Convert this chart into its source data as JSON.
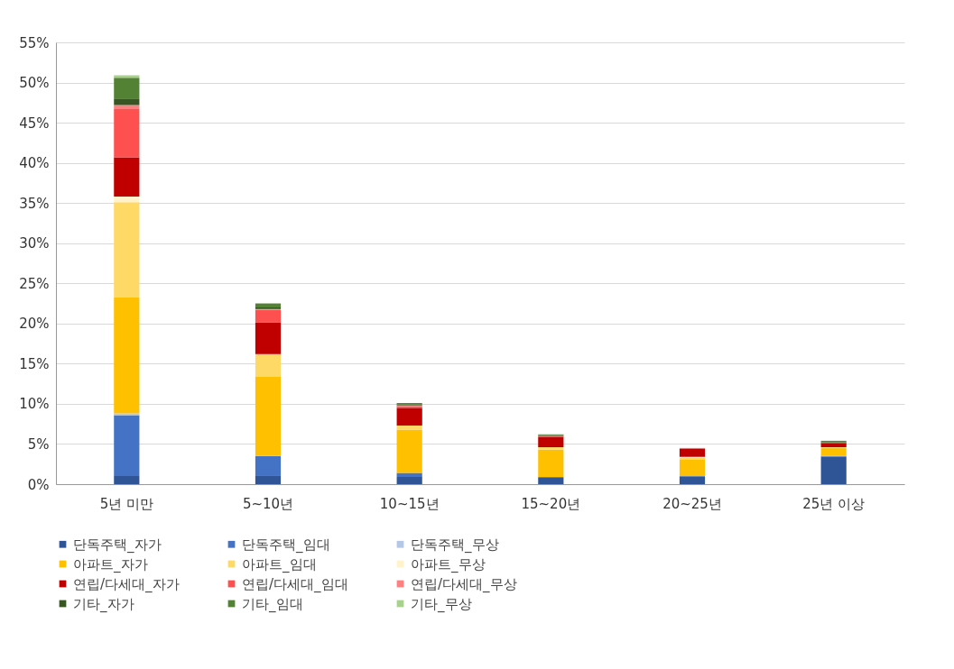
{
  "chart_data": {
    "type": "bar",
    "stacked": true,
    "categories": [
      "5년 미만",
      "5~10년",
      "10~15년",
      "15~20년",
      "20~25년",
      "25년 이상"
    ],
    "series": [
      {
        "name": "단독주택_자가",
        "color": "#2f5597",
        "values": [
          1.0,
          1.1,
          0.9,
          0.8,
          0.9,
          3.4
        ]
      },
      {
        "name": "단독주택_임대",
        "color": "#4472c4",
        "values": [
          7.6,
          2.4,
          0.5,
          0.1,
          0.1,
          0.1
        ]
      },
      {
        "name": "단독주택_무상",
        "color": "#b4c7e7",
        "values": [
          0.2,
          null,
          null,
          0,
          0,
          0
        ]
      },
      {
        "name": "아파트_자가",
        "color": "#ffc000",
        "values": [
          14.5,
          9.9,
          5.4,
          3.4,
          2.1,
          1.0
        ]
      },
      {
        "name": "아파트_임대",
        "color": "#ffd966",
        "values": [
          11.8,
          2.8,
          0.5,
          0.3,
          0.2,
          0.1
        ]
      },
      {
        "name": "아파트_무상",
        "color": "#fff2cc",
        "values": [
          0.7,
          null,
          null,
          null,
          0.1,
          0
        ]
      },
      {
        "name": "연립/다세대_자가",
        "color": "#c00000",
        "values": [
          4.9,
          3.9,
          2.2,
          1.3,
          1.0,
          0.5
        ]
      },
      {
        "name": "연립/다세대_임대",
        "color": "#ff5050",
        "values": [
          6.0,
          1.6,
          0.2,
          0.1,
          0.1,
          0
        ]
      },
      {
        "name": "연립/다세대_무상",
        "color": "#ff8080",
        "values": [
          0.5,
          0.1,
          0.1,
          0,
          0,
          0
        ]
      },
      {
        "name": "기타_자가",
        "color": "#375623",
        "values": [
          0.8,
          0.2,
          0.1,
          0.1,
          0,
          0.1
        ]
      },
      {
        "name": "기타_임대",
        "color": "#548235",
        "values": [
          2.6,
          0.5,
          0.2,
          0.1,
          0,
          0.2
        ]
      },
      {
        "name": "기타_무상",
        "color": "#a9d18e",
        "values": [
          0.3,
          0,
          0,
          0,
          0,
          0
        ]
      }
    ],
    "ylim": [
      0,
      55
    ],
    "yticks": [
      {
        "value": 0,
        "label": "0%"
      },
      {
        "value": 5,
        "label": "5%"
      },
      {
        "value": 10,
        "label": "10%"
      },
      {
        "value": 15,
        "label": "15%"
      },
      {
        "value": 20,
        "label": "20%"
      },
      {
        "value": 25,
        "label": "25%"
      },
      {
        "value": 30,
        "label": "30%"
      },
      {
        "value": 35,
        "label": "35%"
      },
      {
        "value": 40,
        "label": "40%"
      },
      {
        "value": 45,
        "label": "45%"
      },
      {
        "value": 50,
        "label": "50%"
      },
      {
        "value": 55,
        "label": "55%"
      }
    ],
    "grid": "y",
    "legend": "bottom"
  }
}
